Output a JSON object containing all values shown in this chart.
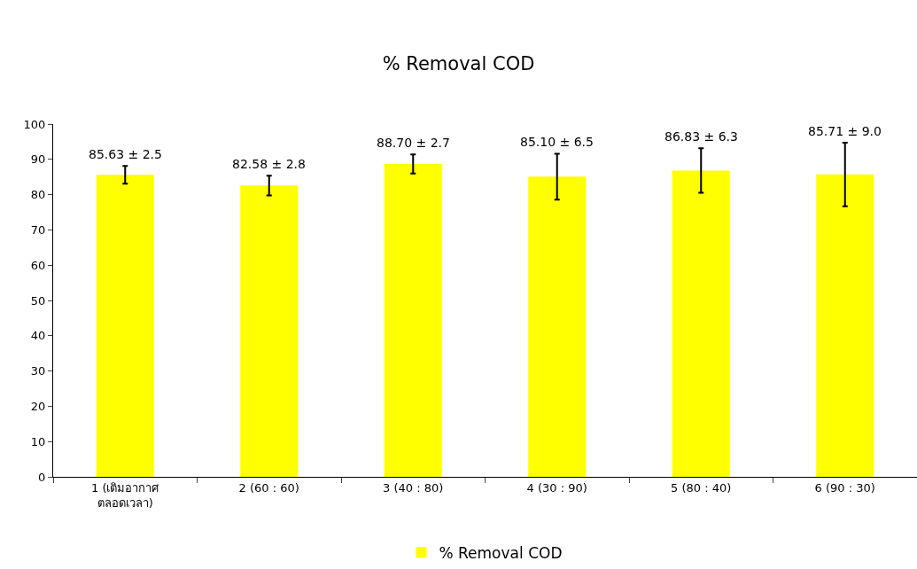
{
  "chart_data": {
    "type": "bar",
    "title": "% Removal COD",
    "categories": [
      "1 (เติมอากาศ\nตลอดเวลา)",
      "2 (60 : 60)",
      "3 (40 : 80)",
      "4 (30 : 90)",
      "5 (80 : 40)",
      "6 (90 : 30)"
    ],
    "series": [
      {
        "name": "% Removal COD",
        "color": "#ffff00",
        "values": [
          85.63,
          82.58,
          88.7,
          85.1,
          86.83,
          85.71
        ],
        "errors": [
          2.5,
          2.8,
          2.7,
          6.5,
          6.3,
          9.0
        ],
        "value_labels": [
          "85.63 ± 2.5",
          "82.58 ± 2.8",
          "88.70 ± 2.7",
          "85.10 ± 6.5",
          "86.83 ± 6.3",
          "85.71 ± 9.0"
        ]
      }
    ],
    "ylim": [
      0,
      100
    ],
    "yticks": [
      0,
      10,
      20,
      30,
      40,
      50,
      60,
      70,
      80,
      90,
      100
    ],
    "grid": false,
    "legend": "bottom"
  }
}
